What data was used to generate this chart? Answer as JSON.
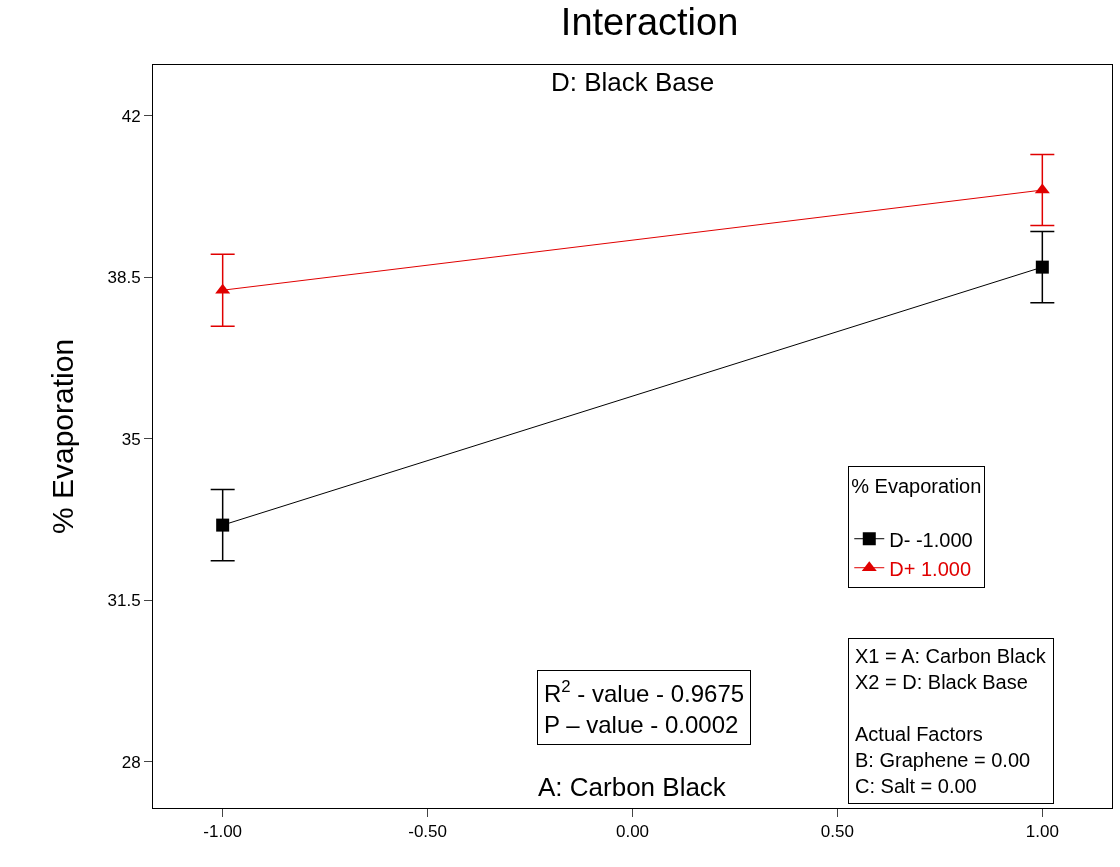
{
  "chart_data": {
    "type": "line",
    "title": "Interaction",
    "subtitle": "D: Black Base",
    "xlabel": "A: Carbon Black",
    "ylabel": "% Evaporation",
    "legend_title": "% Evaporation",
    "x": [
      -1,
      1
    ],
    "series": [
      {
        "name": "D- -1.000",
        "color": "#000000",
        "marker": "square",
        "values": [
          33.13,
          38.72
        ],
        "errors": [
          0.77,
          0.77
        ]
      },
      {
        "name": "D+ 1.000",
        "color": "#e00000",
        "marker": "triangle",
        "values": [
          38.22,
          40.39
        ],
        "errors": [
          0.78,
          0.77
        ]
      }
    ],
    "xlim": [
      -1.17,
      1.17
    ],
    "xticks": [
      {
        "value": -1,
        "label": "-1.00"
      },
      {
        "value": -0.5,
        "label": "-0.50"
      },
      {
        "value": 0,
        "label": "0.00"
      },
      {
        "value": 0.5,
        "label": "0.50"
      },
      {
        "value": 1,
        "label": "1.00"
      }
    ],
    "ylim": [
      27,
      43.1
    ],
    "yticks": [
      28,
      31.5,
      35,
      38.5,
      42
    ],
    "grid": false,
    "legend": "bottom right",
    "annotations": [
      "R$^{2}$ - value - 0.9675\nP – value - 0.0002",
      "X1 = A: Carbon Black\nX2 = D: Black Base\n\nActual Factors\nB: Graphene = 0.00\nC: Salt = 0.00"
    ]
  }
}
